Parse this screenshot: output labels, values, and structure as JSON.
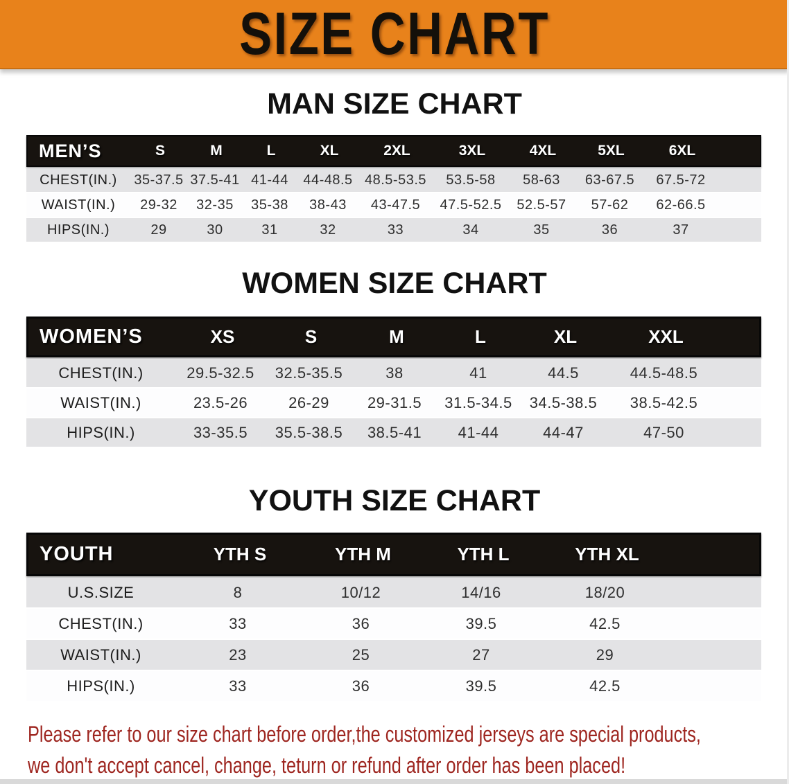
{
  "banner": {
    "title": "SIZE CHART",
    "bg_color": "#e8821b"
  },
  "colors": {
    "banner_bg": "#e8821b",
    "header_bar": "#17130f",
    "row_gray": "#e3e3e5",
    "row_white": "#fdfdfe",
    "note_red": "#9e2620"
  },
  "sections": [
    {
      "heading": "MAN SIZE CHART",
      "table": {
        "header_label": "MEN’S",
        "columns": [
          "S",
          "M",
          "L",
          "XL",
          "2XL",
          "3XL",
          "4XL",
          "5XL",
          "6XL"
        ],
        "rows": [
          {
            "label": "CHEST(IN.)",
            "values": [
              "35-37.5",
              "37.5-41",
              "41-44",
              "44-48.5",
              "48.5-53.5",
              "53.5-58",
              "58-63",
              "63-67.5",
              "67.5-72"
            ]
          },
          {
            "label": "WAIST(IN.)",
            "values": [
              "29-32",
              "32-35",
              "35-38",
              "38-43",
              "43-47.5",
              "47.5-52.5",
              "52.5-57",
              "57-62",
              "62-66.5"
            ]
          },
          {
            "label": "HIPS(IN.)",
            "values": [
              "29",
              "30",
              "31",
              "32",
              "33",
              "34",
              "35",
              "36",
              "37"
            ]
          }
        ]
      }
    },
    {
      "heading": "WOMEN SIZE CHART",
      "table": {
        "header_label": "WOMEN’S",
        "columns": [
          "XS",
          "S",
          "M",
          "L",
          "XL",
          "XXL"
        ],
        "rows": [
          {
            "label": "CHEST(IN.)",
            "values": [
              "29.5-32.5",
              "32.5-35.5",
              "38",
              "41",
              "44.5",
              "44.5-48.5"
            ]
          },
          {
            "label": "WAIST(IN.)",
            "values": [
              "23.5-26",
              "26-29",
              "29-31.5",
              "31.5-34.5",
              "34.5-38.5",
              "38.5-42.5"
            ]
          },
          {
            "label": "HIPS(IN.)",
            "values": [
              "33-35.5",
              "35.5-38.5",
              "38.5-41",
              "41-44",
              "44-47",
              "47-50"
            ]
          }
        ]
      }
    },
    {
      "heading": "YOUTH SIZE CHART",
      "table": {
        "header_label": "YOUTH",
        "columns": [
          "YTH S",
          "YTH M",
          "YTH L",
          "YTH XL"
        ],
        "rows": [
          {
            "label": "U.S.SIZE",
            "values": [
              "8",
              "10/12",
              "14/16",
              "18/20"
            ]
          },
          {
            "label": "CHEST(IN.)",
            "values": [
              "33",
              "36",
              "39.5",
              "42.5"
            ]
          },
          {
            "label": "WAIST(IN.)",
            "values": [
              "23",
              "25",
              "27",
              "29"
            ]
          },
          {
            "label": "HIPS(IN.)",
            "values": [
              "33",
              "36",
              "39.5",
              "42.5"
            ]
          }
        ]
      }
    }
  ],
  "footnote": {
    "line1": "Please refer to our size chart before order,the customized jerseys are special products,",
    "line2": "we don't accept cancel, change, teturn or refund after order has been placed!"
  }
}
